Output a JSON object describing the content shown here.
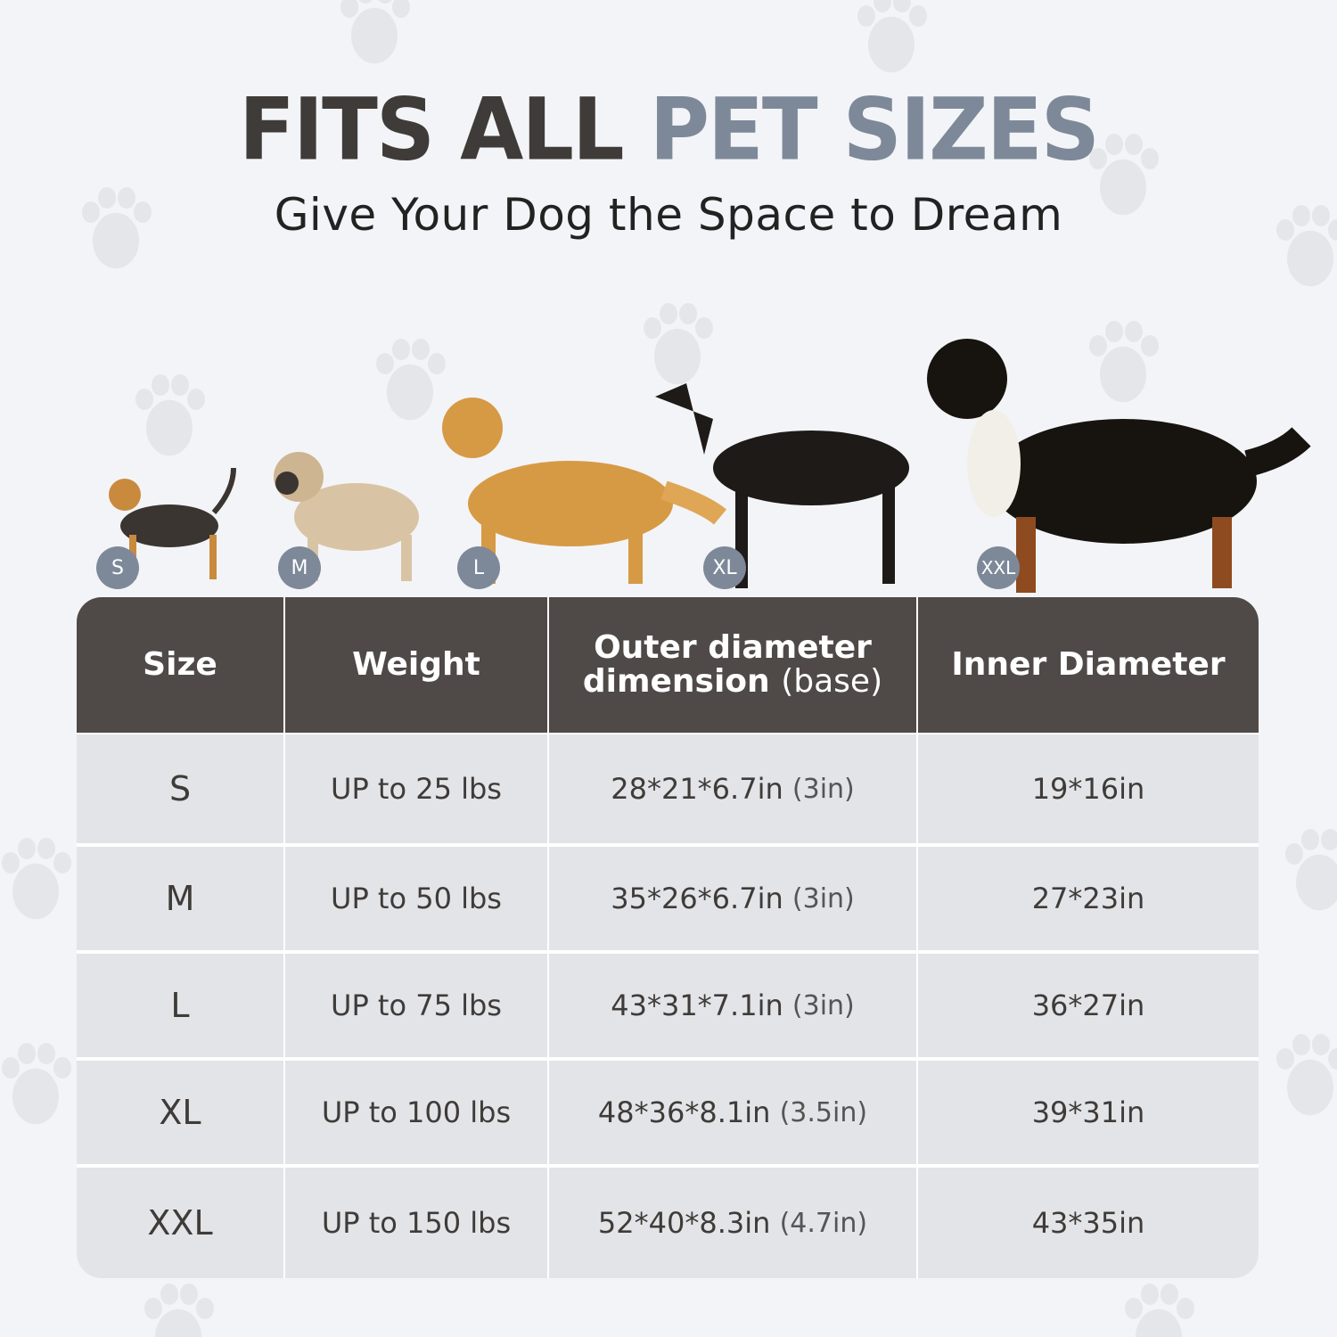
{
  "title": {
    "part1": "FITS ALL",
    "part2": "PET SIZES",
    "accent_color": "#7d8999"
  },
  "subtitle": "Give Your Dog the Space to Dream",
  "dogs": [
    {
      "badge": "S",
      "breed_icon": "yorkshire-terrier"
    },
    {
      "badge": "M",
      "breed_icon": "pug"
    },
    {
      "badge": "L",
      "breed_icon": "golden-retriever"
    },
    {
      "badge": "XL",
      "breed_icon": "doberman"
    },
    {
      "badge": "XXL",
      "breed_icon": "bernese-mountain-dog"
    }
  ],
  "table": {
    "header_color": "#4f4a47",
    "headers": {
      "size": "Size",
      "weight": "Weight",
      "outer_line1": "Outer diameter",
      "outer_line2": "dimension",
      "outer_note": "(base)",
      "inner": "Inner Diameter"
    },
    "rows": [
      {
        "size": "S",
        "weight": "UP to 25 lbs",
        "outer": "28*21*6.7in",
        "base": "(3in)",
        "inner": "19*16in"
      },
      {
        "size": "M",
        "weight": "UP to 50 lbs",
        "outer": "35*26*6.7in",
        "base": "(3in)",
        "inner": "27*23in"
      },
      {
        "size": "L",
        "weight": "UP to 75 lbs",
        "outer": "43*31*7.1in",
        "base": "(3in)",
        "inner": "36*27in"
      },
      {
        "size": "XL",
        "weight": "UP to 100 lbs",
        "outer": "48*36*8.1in",
        "base": "(3.5in)",
        "inner": "39*31in"
      },
      {
        "size": "XXL",
        "weight": "UP to 150 lbs",
        "outer": "52*40*8.3in",
        "base": "(4.7in)",
        "inner": "43*35in"
      }
    ]
  }
}
